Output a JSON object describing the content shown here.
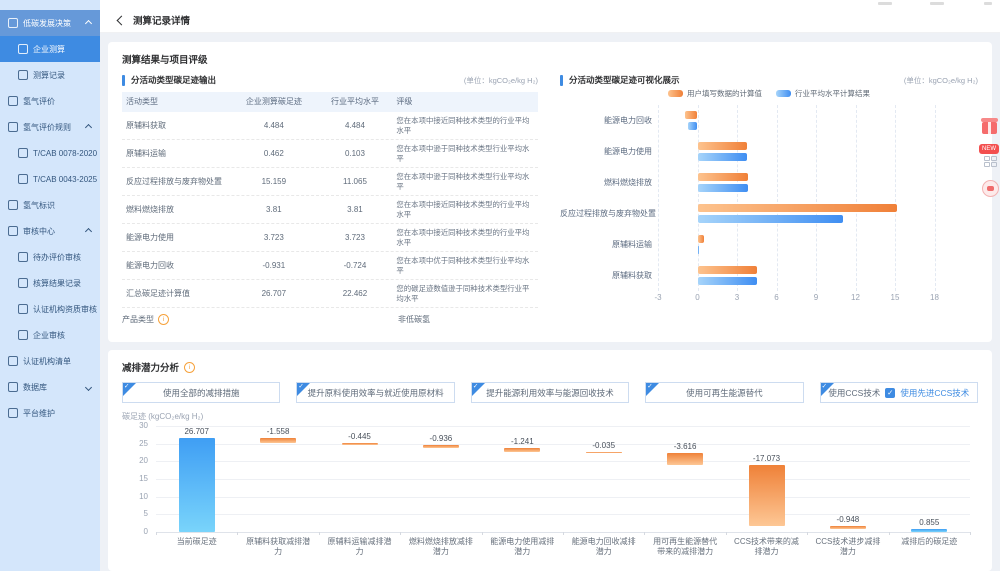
{
  "header": {
    "title": "测算记录详情"
  },
  "sidebar": {
    "items": [
      {
        "label": "低碳发展决策",
        "level": 0,
        "icon": "trend-icon",
        "arrow": "up",
        "group_selected": true
      },
      {
        "label": "企业测算",
        "level": 1,
        "icon": "calculator-icon",
        "active": true
      },
      {
        "label": "测算记录",
        "level": 1,
        "icon": "record-icon"
      },
      {
        "label": "氢气评价",
        "level": 0,
        "icon": "evaluate-icon"
      },
      {
        "label": "氢气评价规则",
        "level": 0,
        "icon": "rules-icon",
        "arrow": "up"
      },
      {
        "label": "T/CAB 0078-2020",
        "level": 1,
        "icon": "document-icon"
      },
      {
        "label": "T/CAB 0043-2025",
        "level": 1,
        "icon": "document-icon"
      },
      {
        "label": "氢气标识",
        "level": 0,
        "icon": "tag-icon"
      },
      {
        "label": "审核中心",
        "level": 0,
        "icon": "audit-icon",
        "arrow": "up"
      },
      {
        "label": "待办评价审核",
        "level": 1,
        "icon": "todo-icon"
      },
      {
        "label": "核算结果记录",
        "level": 1,
        "icon": "result-record-icon"
      },
      {
        "label": "认证机构资质审核",
        "level": 1,
        "icon": "certification-icon"
      },
      {
        "label": "企业审核",
        "level": 1,
        "icon": "company-audit-icon"
      },
      {
        "label": "认证机构清单",
        "level": 0,
        "icon": "list-icon"
      },
      {
        "label": "数据库",
        "level": 0,
        "icon": "database-icon",
        "arrow": "down"
      },
      {
        "label": "平台维护",
        "level": 0,
        "icon": "maintenance-icon"
      }
    ]
  },
  "results_card": {
    "title": "测算结果与项目评级",
    "left": {
      "section_title": "分活动类型碳足迹输出",
      "unit": "(单位：kgCO₂e/kg H₂)",
      "columns": [
        "活动类型",
        "企业测算碳足迹",
        "行业平均水平",
        "评级"
      ],
      "rows": [
        [
          "原辅料获取",
          "4.484",
          "4.484",
          "您在本项中接近同种技术类型的行业平均水平"
        ],
        [
          "原辅料运输",
          "0.462",
          "0.103",
          "您在本项中逊于同种技术类型行业平均水平"
        ],
        [
          "反应过程排放与废弃物处置",
          "15.159",
          "11.065",
          "您在本项中逊于同种技术类型行业平均水平"
        ],
        [
          "燃料燃烧排放",
          "3.81",
          "3.81",
          "您在本项中接近同种技术类型的行业平均水平"
        ],
        [
          "能源电力使用",
          "3.723",
          "3.723",
          "您在本项中接近同种技术类型的行业平均水平"
        ],
        [
          "能源电力回收",
          "-0.931",
          "-0.724",
          "您在本项中优于同种技术类型行业平均水平"
        ],
        [
          "汇总碳足迹计算值",
          "26.707",
          "22.462",
          "您的碳足迹数值逊于同种技术类型行业平均水平"
        ]
      ],
      "product_type_label": "产品类型",
      "product_type_value": "非低碳氢"
    },
    "right": {
      "section_title": "分活动类型碳足迹可视化展示",
      "unit": "(单位：kgCO₂e/kg H₂)"
    }
  },
  "reduction_card": {
    "title": "减排潜力分析",
    "buttons": [
      "使用全部的减排措施",
      "提升原料使用效率与就近使用原材料",
      "提升能源利用效率与能源回收技术",
      "使用可再生能源替代",
      "使用CCS技术"
    ],
    "ccs_checkbox_label": "使用先进CCS技术",
    "ccs_checkbox_checked": true
  },
  "chart_data": [
    {
      "type": "bar",
      "orientation": "horizontal",
      "title": "分活动类型碳足迹可视化展示",
      "unit": "kgCO₂e/kg H₂",
      "categories": [
        "能源电力回收",
        "能源电力使用",
        "燃料燃烧排放",
        "反应过程排放与废弃物处置",
        "原辅料运输",
        "原辅料获取"
      ],
      "series": [
        {
          "name": "用户填写数据的计算值",
          "color": "#f08038",
          "color_light": "#fdc38e",
          "values": [
            -0.931,
            3.723,
            3.81,
            15.159,
            0.462,
            4.484
          ]
        },
        {
          "name": "行业平均水平计算结果",
          "color": "#3f8ef2",
          "color_light": "#a6d4fa",
          "values": [
            -0.724,
            3.723,
            3.81,
            11.065,
            0.103,
            4.484
          ]
        }
      ],
      "xticks": [
        -3,
        0,
        3,
        6,
        9,
        12,
        15,
        18
      ],
      "xlim": [
        -3,
        21
      ],
      "grid": "dashed-vertical",
      "legend_position": "top-center"
    },
    {
      "type": "bar",
      "subtype": "waterfall",
      "ylabel": "碳足迹 (kgCO₂e/kg H₂)",
      "yticks": [
        0,
        5,
        10,
        15,
        20,
        25,
        30
      ],
      "ylim": [
        0,
        30
      ],
      "grid": "solid-horizontal",
      "bars": [
        {
          "label": "当前碳足迹",
          "value": 26.707,
          "display": "26.707",
          "kind": "total"
        },
        {
          "label": "原辅料获取减排潜力",
          "value": -1.558,
          "display": "-1.558",
          "kind": "delta"
        },
        {
          "label": "原辅料运输减排潜力",
          "value": -0.445,
          "display": "-0.445",
          "kind": "delta"
        },
        {
          "label": "燃料燃烧排放减排潜力",
          "value": -0.936,
          "display": "-0.936",
          "kind": "delta"
        },
        {
          "label": "能源电力使用减排潜力",
          "value": -1.241,
          "display": "-1.241",
          "kind": "delta"
        },
        {
          "label": "能源电力回收减排潜力",
          "value": -0.035,
          "display": "-0.035",
          "kind": "delta"
        },
        {
          "label": "用可再生能源替代带来的减排潜力",
          "value": -3.616,
          "display": "-3.616",
          "kind": "delta"
        },
        {
          "label": "CCS技术带来的减排潜力",
          "value": -17.073,
          "display": "-17.073",
          "kind": "delta"
        },
        {
          "label": "CCS技术进步减排潜力",
          "value": -0.948,
          "display": "-0.948",
          "kind": "delta"
        },
        {
          "label": "减排后的碳足迹",
          "value": 0.855,
          "display": "0.855",
          "kind": "total"
        }
      ]
    }
  ],
  "colors": {
    "primary": "#3e8be2",
    "sidebar_bg": "#d4e6fb",
    "sidebar_group_selected": "#6699d9",
    "sidebar_active": "#3e8be2",
    "orange_bar": "#f08038",
    "orange_bar_light": "#fdc38e",
    "blue_bar": "#3f8ef2",
    "blue_bar_light": "#a6d4fa",
    "wf_total_top": "#3f9ef4",
    "wf_total_bottom": "#79d4fb",
    "wf_delta_top": "#ef8138",
    "wf_delta_bottom": "#fdc795",
    "info_icon": "#f6a23c"
  }
}
